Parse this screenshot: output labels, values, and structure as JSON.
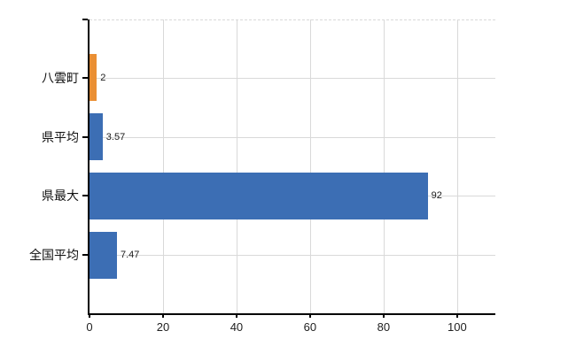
{
  "chart_data": {
    "type": "bar",
    "orientation": "horizontal",
    "title": "",
    "xlabel": "",
    "ylabel": "",
    "grid": true,
    "legend": false,
    "categories": [
      "八雲町",
      "県平均",
      "県最大",
      "全国平均"
    ],
    "series": [
      {
        "name": "values",
        "values": [
          2,
          3.57,
          92,
          7.47
        ]
      }
    ],
    "value_labels": [
      "2",
      "3.57",
      "92",
      "7.47"
    ],
    "bar_colors": [
      "#EA8F33",
      "#3C6EB4",
      "#3C6EB4",
      "#3C6EB4"
    ],
    "x_ticks": [
      0,
      20,
      40,
      60,
      80,
      100
    ],
    "x_tick_labels": [
      "0",
      "20",
      "40",
      "60",
      "80",
      "100"
    ],
    "xlim": [
      0,
      110.4
    ]
  },
  "colors": {
    "background": "#ffffff",
    "axis": "#000000",
    "grid": "#d9d9d9",
    "text": "#1a1a1a",
    "bar_default": "#3C6EB4",
    "bar_highlight": "#EA8F33"
  }
}
